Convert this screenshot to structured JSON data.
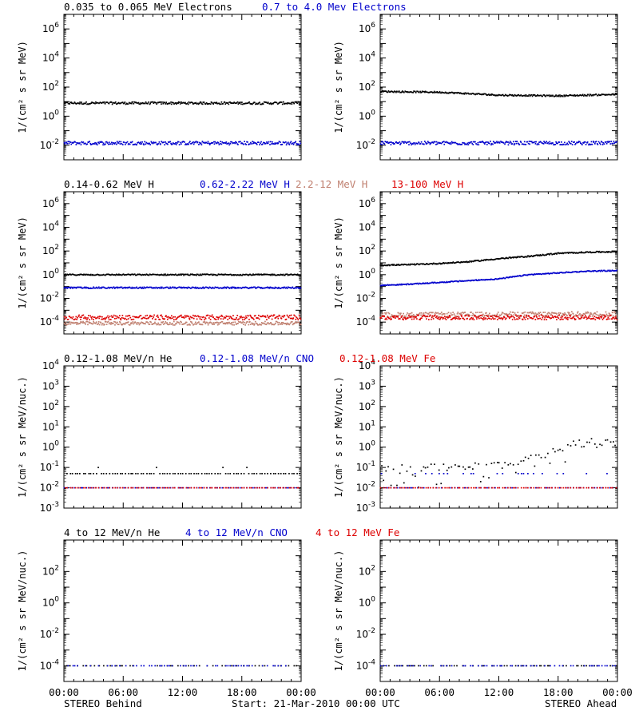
{
  "footer": {
    "left": "STEREO Behind",
    "center": "Start: 21-Mar-2010 00:00 UTC",
    "right": "STEREO Ahead"
  },
  "time_axis": {
    "ticks": [
      0,
      6,
      12,
      18,
      24
    ],
    "tick_labels": [
      "00:00",
      "06:00",
      "12:00",
      "18:00",
      "00:00"
    ],
    "unit": "hours since 21-Mar-2010 00:00 UTC"
  },
  "colors": {
    "black": "#000000",
    "blue": "#0000cc",
    "tan": "#c08070",
    "red": "#dd0000"
  },
  "rows": [
    {
      "ylabel_html": "1/(cm² s sr MeV)",
      "legend": [
        {
          "text": "0.035 to 0.065 MeV Electrons",
          "color": "#000000"
        },
        {
          "text": "0.7 to 4.0 Mev Electrons",
          "color": "#0000cc"
        }
      ]
    },
    {
      "ylabel_html": "1/(cm² s sr MeV)",
      "legend": [
        {
          "text": "0.14-0.62 MeV H",
          "color": "#000000"
        },
        {
          "text": "0.62-2.22 MeV H",
          "color": "#0000cc"
        },
        {
          "text": "2.2-12 MeV H",
          "color": "#c08070"
        },
        {
          "text": "13-100 MeV H",
          "color": "#dd0000"
        }
      ]
    },
    {
      "ylabel_html": "1/(cm² s sr MeV/nuc.)",
      "legend": [
        {
          "text": "0.12-1.08 MeV/n He",
          "color": "#000000"
        },
        {
          "text": "0.12-1.08 MeV/n CNO",
          "color": "#0000cc"
        },
        {
          "text": "0.12-1.08 MeV Fe",
          "color": "#dd0000"
        }
      ]
    },
    {
      "ylabel_html": "1/(cm² s sr MeV/nuc.)",
      "legend": [
        {
          "text": "4 to 12 MeV/n He",
          "color": "#000000"
        },
        {
          "text": "4 to 12 MeV/n CNO",
          "color": "#0000cc"
        },
        {
          "text": "4 to 12 MeV Fe",
          "color": "#dd0000"
        }
      ]
    }
  ],
  "chart_data": [
    {
      "type": "scatter",
      "panel": "electrons-behind",
      "xlim": [
        0,
        24
      ],
      "ylim_log10": [
        -3,
        7
      ],
      "yscale": "log",
      "ytick_exponents": [
        -2,
        0,
        2,
        4,
        6
      ],
      "series": [
        {
          "name": "0.035 to 0.065 MeV Electrons",
          "color": "#000000",
          "x": [
            0,
            24
          ],
          "log10_y": [
            0.9,
            0.9
          ],
          "scatter": 0.08
        },
        {
          "name": "0.7 to 4.0 Mev Electrons",
          "color": "#0000cc",
          "x": [
            0,
            24
          ],
          "log10_y": [
            -1.85,
            -1.85
          ],
          "scatter": 0.12
        }
      ]
    },
    {
      "type": "scatter",
      "panel": "electrons-ahead",
      "xlim": [
        0,
        24
      ],
      "ylim_log10": [
        -3,
        7
      ],
      "yscale": "log",
      "ytick_exponents": [
        -2,
        0,
        2,
        4,
        6
      ],
      "series": [
        {
          "name": "0.035 to 0.065 MeV Electrons",
          "color": "#000000",
          "x": [
            0,
            6,
            12,
            18,
            24
          ],
          "log10_y": [
            1.7,
            1.65,
            1.45,
            1.4,
            1.5
          ],
          "scatter": 0.05
        },
        {
          "name": "0.7 to 4.0 Mev Electrons",
          "color": "#0000cc",
          "x": [
            0,
            24
          ],
          "log10_y": [
            -1.85,
            -1.85
          ],
          "scatter": 0.12
        }
      ]
    },
    {
      "type": "scatter",
      "panel": "protons-behind",
      "xlim": [
        0,
        24
      ],
      "ylim_log10": [
        -5,
        7
      ],
      "yscale": "log",
      "ytick_exponents": [
        -4,
        -2,
        0,
        2,
        4,
        6
      ],
      "series": [
        {
          "name": "0.14-0.62 MeV H",
          "color": "#000000",
          "x": [
            0,
            24
          ],
          "log10_y": [
            0.0,
            0.0
          ],
          "scatter": 0.05
        },
        {
          "name": "0.62-2.22 MeV H",
          "color": "#0000cc",
          "x": [
            0,
            24
          ],
          "log10_y": [
            -1.1,
            -1.1
          ],
          "scatter": 0.06
        },
        {
          "name": "2.2-12 MeV H",
          "color": "#c08070",
          "x": [
            0,
            24
          ],
          "log10_y": [
            -4.1,
            -4.1
          ],
          "scatter": 0.15
        },
        {
          "name": "13-100 MeV H",
          "color": "#dd0000",
          "x": [
            0,
            24
          ],
          "log10_y": [
            -3.6,
            -3.6
          ],
          "scatter": 0.2
        }
      ]
    },
    {
      "type": "scatter",
      "panel": "protons-ahead",
      "xlim": [
        0,
        24
      ],
      "ylim_log10": [
        -5,
        7
      ],
      "yscale": "log",
      "ytick_exponents": [
        -4,
        -2,
        0,
        2,
        4,
        6
      ],
      "series": [
        {
          "name": "0.14-0.62 MeV H",
          "color": "#000000",
          "x": [
            0,
            3,
            6,
            9,
            12,
            15,
            18,
            21,
            24
          ],
          "log10_y": [
            0.8,
            0.85,
            0.95,
            1.1,
            1.35,
            1.55,
            1.8,
            1.9,
            1.95
          ],
          "scatter": 0.05
        },
        {
          "name": "0.62-2.22 MeV H",
          "color": "#0000cc",
          "x": [
            0,
            3,
            6,
            9,
            12,
            15,
            18,
            21,
            24
          ],
          "log10_y": [
            -0.9,
            -0.8,
            -0.65,
            -0.5,
            -0.35,
            0.0,
            0.15,
            0.3,
            0.35
          ],
          "scatter": 0.04
        },
        {
          "name": "2.2-12 MeV H",
          "color": "#c08070",
          "x": [
            0,
            24
          ],
          "log10_y": [
            -3.4,
            -3.3
          ],
          "scatter": 0.2
        },
        {
          "name": "13-100 MeV H",
          "color": "#dd0000",
          "x": [
            0,
            24
          ],
          "log10_y": [
            -3.6,
            -3.6
          ],
          "scatter": 0.2
        }
      ]
    },
    {
      "type": "scatter",
      "panel": "heavy-low-behind",
      "xlim": [
        0,
        24
      ],
      "ylim_log10": [
        -3,
        4
      ],
      "yscale": "log",
      "ytick_labels": [
        "10<sup>-3</sup>",
        "10<sup>-2</sup>",
        "10<sup>-1</sup>",
        "10<sup>0</sup>",
        "10<sup>1</sup>",
        "10<sup>2</sup>",
        "10<sup>3</sup>",
        "10<sup>4</sup>"
      ],
      "ytick_exponents": [
        -3,
        -2,
        -1,
        0,
        1,
        2,
        3,
        4
      ],
      "series": [
        {
          "name": "0.12-1.08 MeV/n He",
          "color": "#000000",
          "x": [
            0,
            24
          ],
          "log10_y": [
            -1.3,
            -1.3
          ],
          "scatter": 0.0
        },
        {
          "name": "0.12-1.08 MeV/n CNO",
          "color": "#0000cc",
          "x": [
            0,
            24
          ],
          "log10_y": [
            -2.0,
            -2.0
          ],
          "scatter": 0.0
        },
        {
          "name": "0.12-1.08 MeV Fe",
          "color": "#dd0000",
          "x": [
            0,
            24
          ],
          "log10_y": [
            -2.0,
            -2.0
          ],
          "scatter": 0.0
        }
      ]
    },
    {
      "type": "scatter",
      "panel": "heavy-low-ahead",
      "xlim": [
        0,
        24
      ],
      "ylim_log10": [
        -3,
        4
      ],
      "yscale": "log",
      "ytick_exponents": [
        -3,
        -2,
        -1,
        0,
        1,
        2,
        3,
        4
      ],
      "series": [
        {
          "name": "0.12-1.08 MeV/n He",
          "color": "#000000",
          "x": [
            0,
            6,
            12,
            16,
            20,
            24
          ],
          "log10_y": [
            -1.0,
            -1.0,
            -0.9,
            -0.5,
            0.2,
            0.35
          ],
          "scatter": 0.2
        },
        {
          "name": "0.12-1.08 MeV/n CNO",
          "color": "#0000cc",
          "x": [
            0,
            24
          ],
          "log10_y": [
            -2.0,
            -2.0
          ],
          "scatter": 0.0
        },
        {
          "name": "0.12-1.08 MeV Fe",
          "color": "#dd0000",
          "x": [
            0,
            24
          ],
          "log10_y": [
            -2.0,
            -2.0
          ],
          "scatter": 0.0
        }
      ]
    },
    {
      "type": "scatter",
      "panel": "heavy-high-behind",
      "xlim": [
        0,
        24
      ],
      "ylim_log10": [
        -5,
        4
      ],
      "yscale": "log",
      "ytick_exponents": [
        -4,
        -2,
        0,
        2
      ],
      "series": [
        {
          "name": "4 to 12 MeV/n He",
          "color": "#000000",
          "x": [
            0,
            24
          ],
          "log10_y": [
            -4.0,
            -4.0
          ],
          "scatter": 0.0
        },
        {
          "name": "4 to 12 MeV/n CNO",
          "color": "#0000cc",
          "x": [
            0,
            24
          ],
          "log10_y": [
            -4.0,
            -4.0
          ],
          "scatter": 0.0
        }
      ]
    },
    {
      "type": "scatter",
      "panel": "heavy-high-ahead",
      "xlim": [
        0,
        24
      ],
      "ylim_log10": [
        -5,
        4
      ],
      "yscale": "log",
      "ytick_exponents": [
        -4,
        -2,
        0,
        2
      ],
      "series": [
        {
          "name": "4 to 12 MeV/n He",
          "color": "#000000",
          "x": [
            0,
            24
          ],
          "log10_y": [
            -4.0,
            -4.0
          ],
          "scatter": 0.0
        },
        {
          "name": "4 to 12 MeV/n CNO",
          "color": "#0000cc",
          "x": [
            0,
            24
          ],
          "log10_y": [
            -4.0,
            -4.0
          ],
          "scatter": 0.0
        }
      ]
    }
  ]
}
